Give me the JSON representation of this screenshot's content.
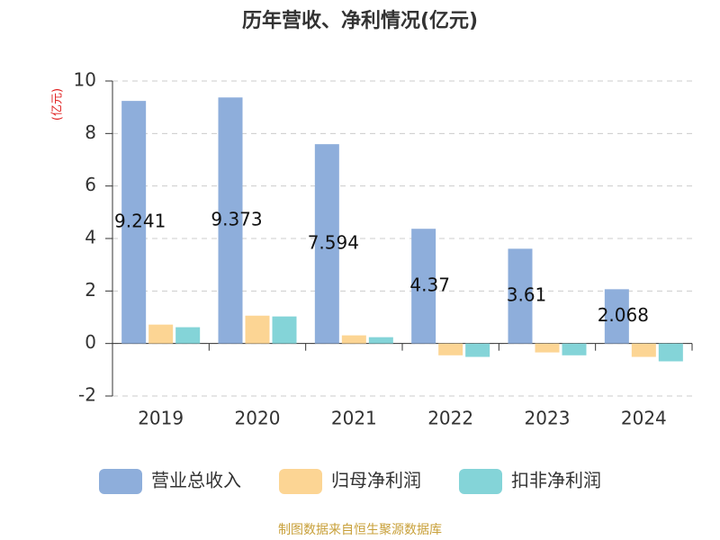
{
  "chart_data": {
    "type": "bar",
    "title": "历年营收、净利情况(亿元)",
    "y_label": "(亿元)",
    "categories": [
      "2019",
      "2020",
      "2021",
      "2022",
      "2023",
      "2024"
    ],
    "series": [
      {
        "name": "营业总收入",
        "color": "#8eaedb",
        "values": [
          9.241,
          9.373,
          7.594,
          4.37,
          3.61,
          2.068
        ]
      },
      {
        "name": "归母净利润",
        "color": "#fcd594",
        "values": [
          0.72,
          1.06,
          0.31,
          -0.45,
          -0.34,
          -0.51
        ]
      },
      {
        "name": "扣非净利润",
        "color": "#84d4d8",
        "values": [
          0.62,
          1.03,
          0.24,
          -0.51,
          -0.45,
          -0.68
        ]
      }
    ],
    "ylim": [
      -2,
      10
    ],
    "yticks": [
      -2,
      0,
      2,
      4,
      6,
      8,
      10
    ],
    "grid": true,
    "legend": "bottom",
    "source": "制图数据来自恒生聚源数据库"
  }
}
